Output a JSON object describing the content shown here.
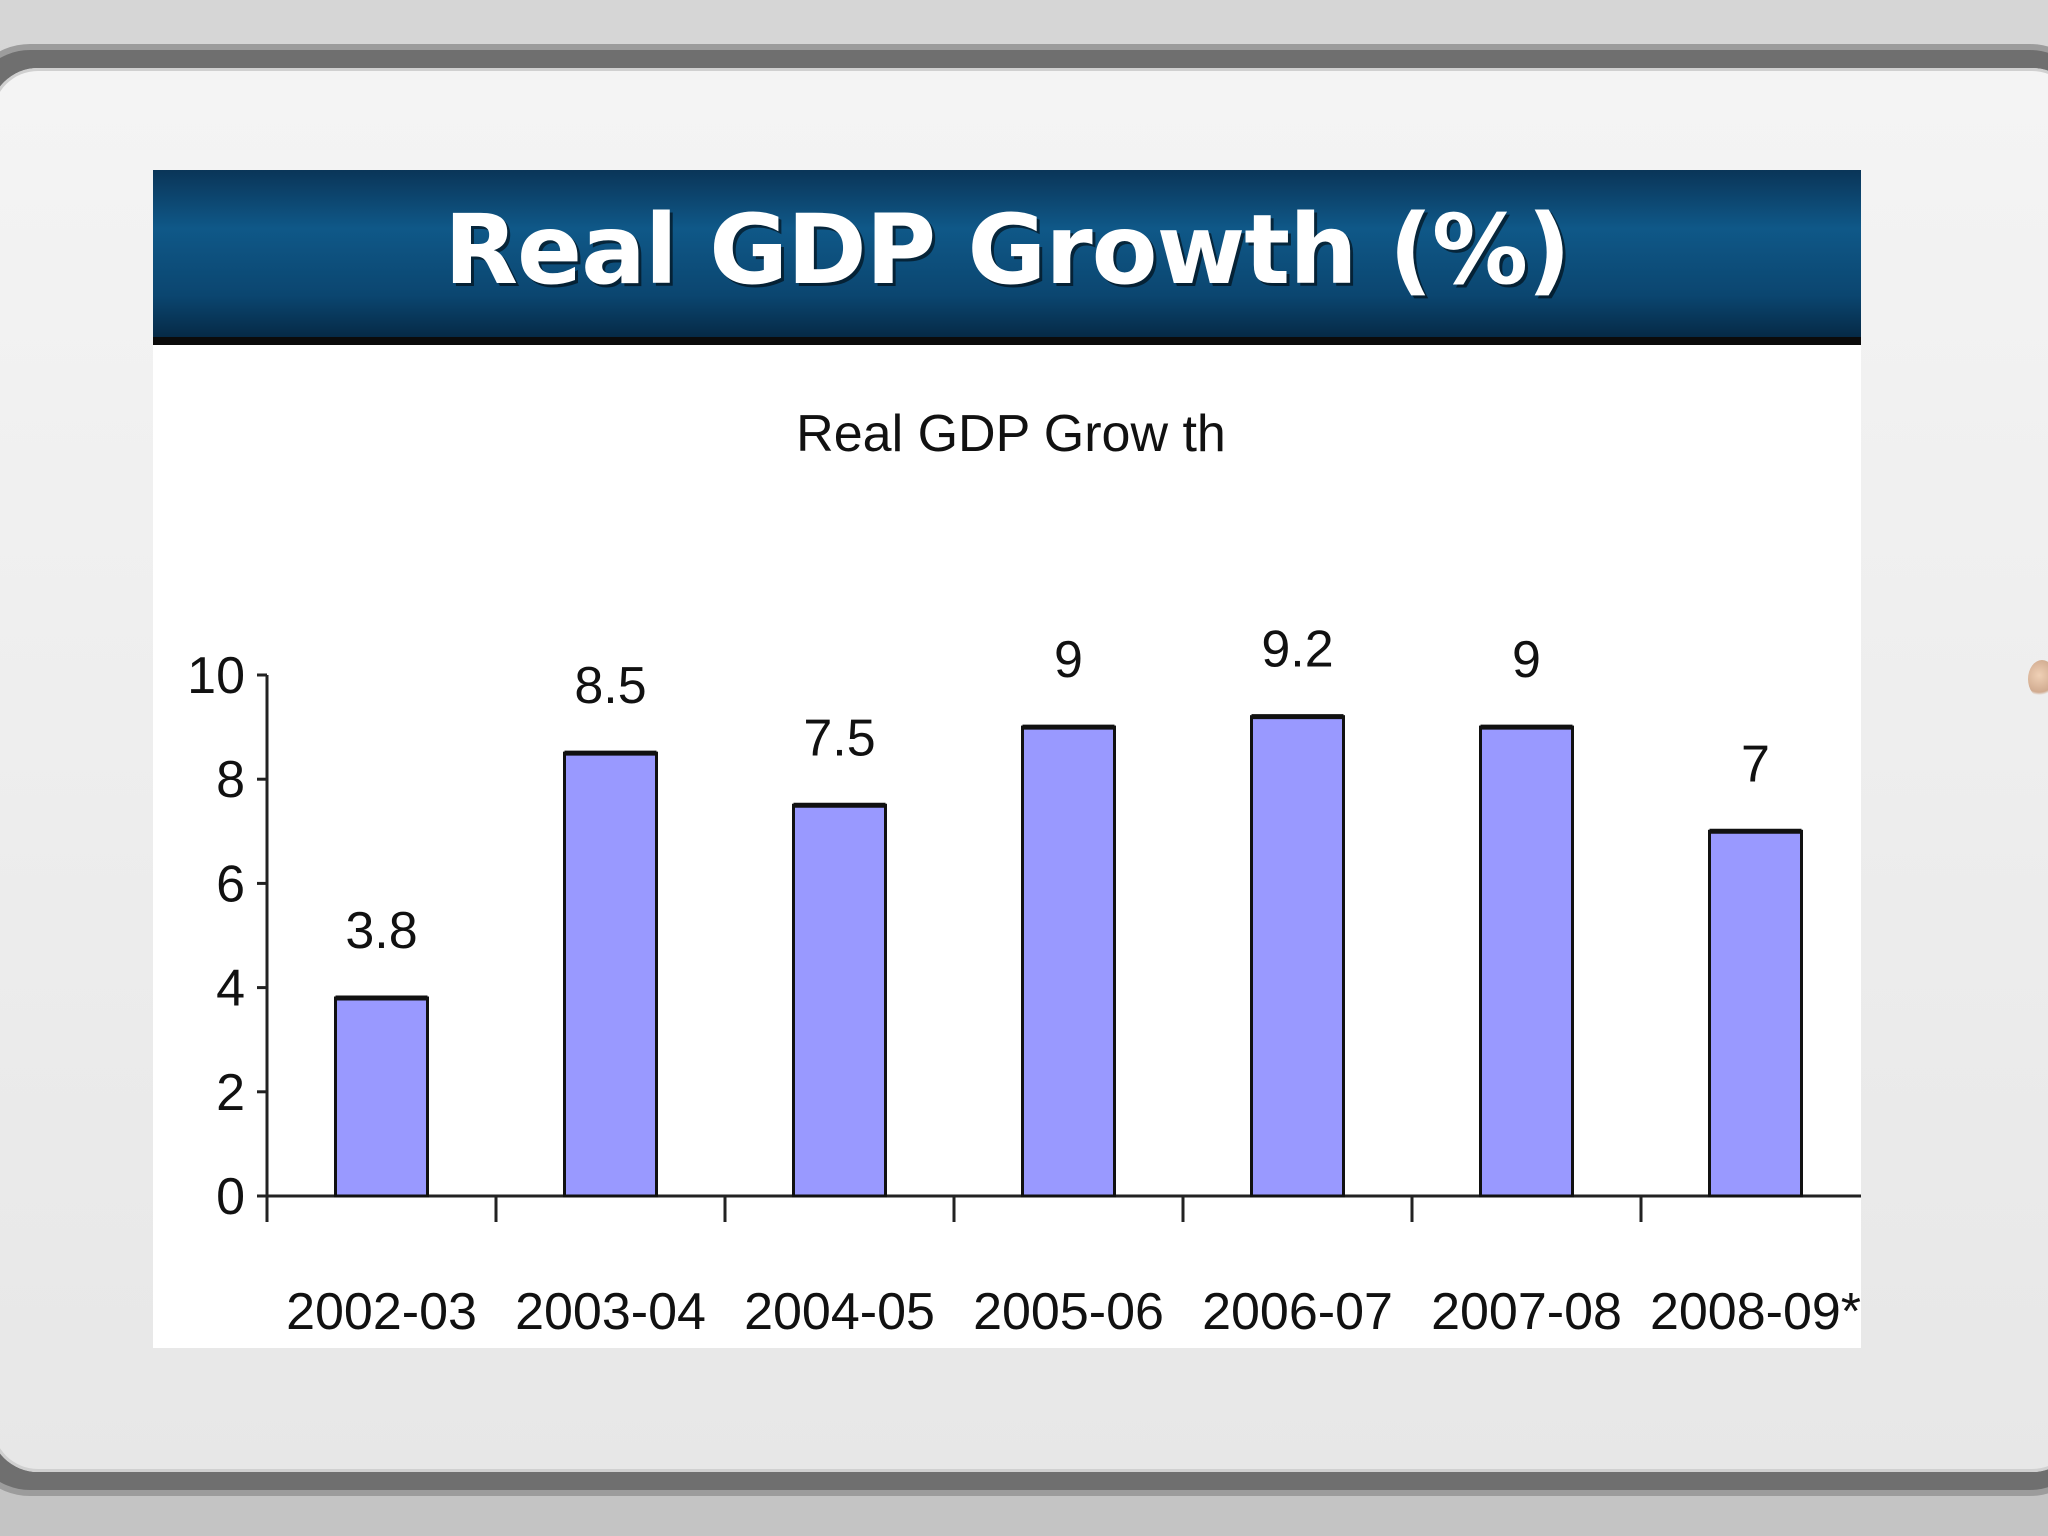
{
  "banner": {
    "title": "Real GDP Growth (%)"
  },
  "colors": {
    "bar_fill": "#9999ff",
    "bar_stroke": "#111111",
    "banner_top": "#0a3558",
    "banner_mid": "#0f5888"
  },
  "chart_data": {
    "type": "bar",
    "title": "Real GDP Grow th",
    "xlabel": "",
    "ylabel": "",
    "categories": [
      "2002-03",
      "2003-04",
      "2004-05",
      "2005-06",
      "2006-07",
      "2007-08",
      "2008-09*"
    ],
    "values": [
      3.8,
      8.5,
      7.5,
      9,
      9.2,
      9,
      7
    ],
    "value_labels": [
      "3.8",
      "8.5",
      "7.5",
      "9",
      "9.2",
      "9",
      "7"
    ],
    "ylim": [
      0,
      10
    ],
    "yticks": [
      0,
      2,
      4,
      6,
      8,
      10
    ],
    "ytick_labels": [
      "0",
      "2",
      "4",
      "6",
      "8",
      "10"
    ],
    "grid": false,
    "legend": "none"
  }
}
